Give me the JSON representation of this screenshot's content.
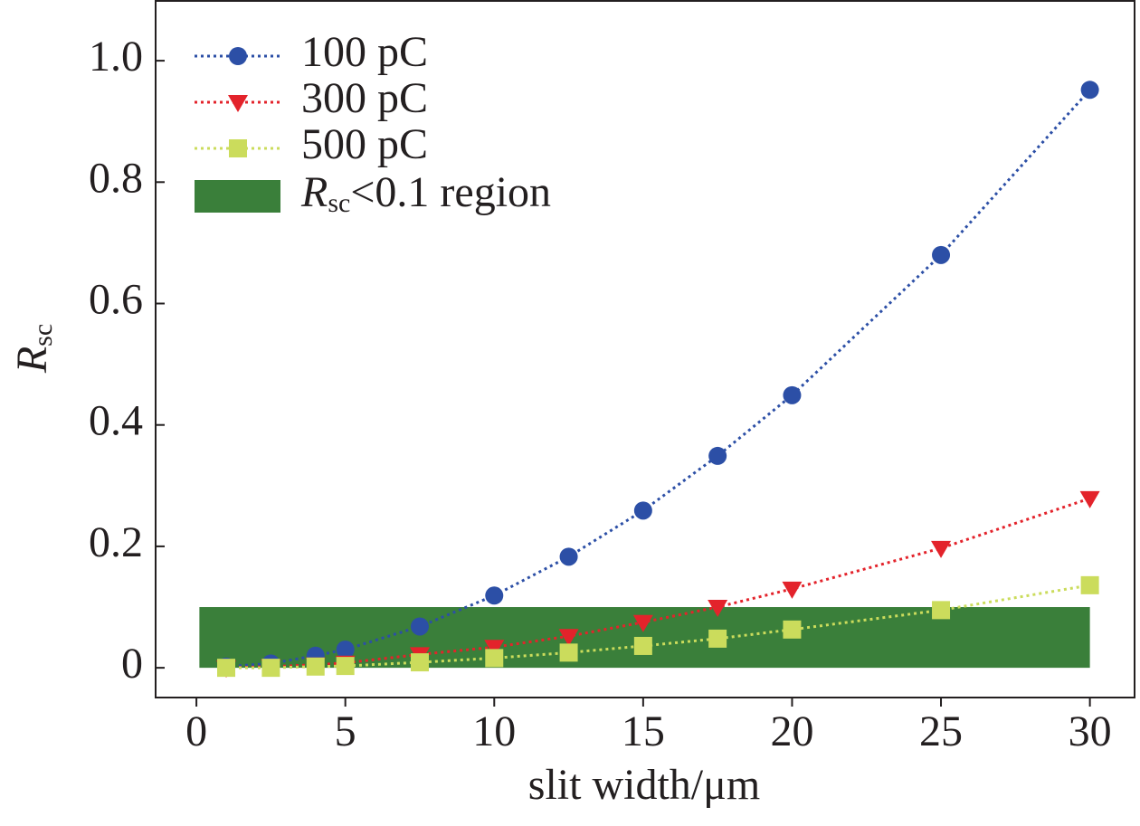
{
  "chart_data": {
    "type": "line",
    "xlabel": "slit width/μm",
    "ylabel": {
      "main": "R",
      "sub": "sc"
    },
    "x": [
      1,
      2.5,
      4,
      5,
      7.5,
      10,
      12.5,
      15,
      17.5,
      20,
      25,
      30
    ],
    "series": [
      {
        "name": "100 pC",
        "color": "#2c4fa6",
        "marker": "circle",
        "values": [
          0.002,
          0.007,
          0.02,
          0.03,
          0.068,
          0.119,
          0.183,
          0.259,
          0.349,
          0.449,
          0.68,
          0.952
        ]
      },
      {
        "name": "300 pC",
        "color": "#e3232b",
        "marker": "triangle-down",
        "values": [
          0.0,
          0.002,
          0.005,
          0.008,
          0.022,
          0.034,
          0.052,
          0.075,
          0.1,
          0.13,
          0.197,
          0.279
        ]
      },
      {
        "name": "500 pC",
        "color": "#cbdc5c",
        "marker": "square",
        "values": [
          0.0,
          0.0,
          0.002,
          0.003,
          0.009,
          0.016,
          0.025,
          0.036,
          0.048,
          0.063,
          0.095,
          0.136
        ]
      }
    ],
    "region": {
      "label": {
        "main": "R",
        "sub": "sc",
        "rest": "<0.1 region"
      },
      "color": "#3a7f3a",
      "xrange": [
        0.1,
        30
      ],
      "yrange": [
        0,
        0.1
      ]
    },
    "xlim": [
      -1.37,
      31.5
    ],
    "ylim": [
      -0.049,
      1.1
    ],
    "xticks": [
      0,
      5,
      10,
      15,
      20,
      25,
      30
    ],
    "yticks": [
      0,
      0.2,
      0.4,
      0.6,
      0.8,
      {
        "value": 1,
        "label": "1.0"
      }
    ],
    "legend": "upper left"
  }
}
